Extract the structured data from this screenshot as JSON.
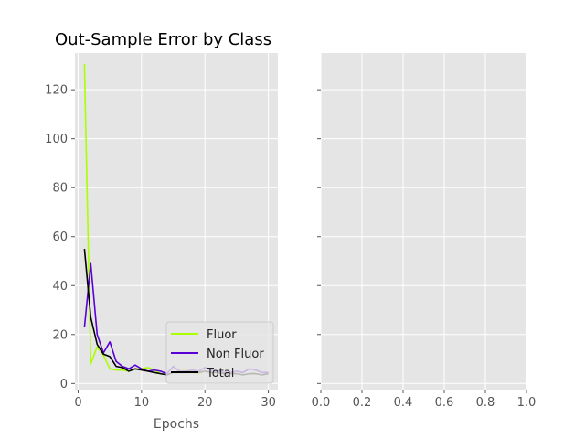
{
  "chart_data": [
    {
      "type": "line",
      "title": "Out-Sample Error by Class",
      "xlabel": "Epochs",
      "ylabel": "",
      "xlim": [
        -0.5,
        31.5
      ],
      "ylim": [
        -2.5,
        135
      ],
      "xticks": [
        0,
        10,
        20,
        30
      ],
      "yticks": [
        0,
        20,
        40,
        60,
        80,
        100,
        120
      ],
      "grid": true,
      "legend_position": "lower-right",
      "series": [
        {
          "name": "Fluor",
          "color": "#aaff00",
          "x": [
            1,
            2,
            3,
            4,
            5,
            6,
            7,
            8,
            9,
            10,
            11,
            12,
            13,
            14,
            15,
            16,
            17,
            18,
            19,
            20,
            21,
            22,
            23,
            24,
            25,
            26,
            27,
            28,
            29,
            30
          ],
          "values": [
            130.5,
            8,
            15,
            11.5,
            6,
            5.5,
            5.5,
            5,
            6,
            6,
            6.5,
            5.5,
            4,
            3.5,
            4.5,
            5,
            6,
            4.5,
            4,
            5,
            4.5,
            4.5,
            4,
            4,
            4,
            3.5,
            4,
            4,
            3.5,
            4
          ]
        },
        {
          "name": "Non Fluor",
          "color": "#5a00d6",
          "x": [
            1,
            2,
            3,
            4,
            5,
            6,
            7,
            8,
            9,
            10,
            11,
            12,
            13,
            14,
            15,
            16,
            17,
            18,
            19,
            20,
            21,
            22,
            23,
            24,
            25,
            26,
            27,
            28,
            29,
            30
          ],
          "values": [
            23,
            49,
            20,
            12.5,
            17,
            9,
            7,
            6,
            7.5,
            6,
            5,
            5.5,
            5,
            4,
            7,
            5,
            5,
            5.5,
            5,
            6.5,
            5.5,
            5,
            4.5,
            4.5,
            5,
            4.5,
            6,
            5.5,
            4.5,
            4.5
          ]
        },
        {
          "name": "Total",
          "color": "#000000",
          "x": [
            1,
            2,
            3,
            4,
            5,
            6,
            7,
            8,
            9,
            10,
            11,
            12,
            13,
            14,
            15,
            16,
            17,
            18,
            19,
            20,
            21,
            22,
            23,
            24,
            25,
            26,
            27,
            28,
            29,
            30
          ],
          "values": [
            55,
            27,
            16,
            12,
            11,
            7,
            6.5,
            5,
            6,
            5.5,
            5,
            4.5,
            4,
            3.5,
            4.5,
            4.5,
            4.5,
            4.5,
            4.5,
            5,
            4.5,
            4.5,
            4,
            4,
            4,
            3.5,
            4,
            4,
            3.5,
            4
          ]
        }
      ]
    },
    {
      "type": "line",
      "title": "",
      "xlabel": "",
      "ylabel": "",
      "xlim": [
        0,
        1
      ],
      "ylim": [
        -2.5,
        135
      ],
      "xticks": [
        "0.0",
        "0.2",
        "0.4",
        "0.6",
        "0.8",
        "1.0"
      ],
      "yticks": [
        0,
        20,
        40,
        60,
        80,
        100,
        120
      ],
      "grid": true,
      "series": []
    }
  ]
}
